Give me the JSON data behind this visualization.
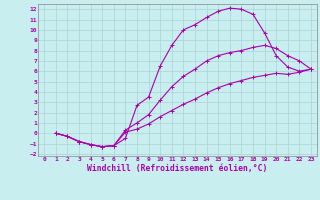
{
  "xlabel": "Windchill (Refroidissement éolien,°C)",
  "xlim": [
    -0.5,
    23.5
  ],
  "ylim": [
    -2.2,
    12.5
  ],
  "xticks": [
    0,
    1,
    2,
    3,
    4,
    5,
    6,
    7,
    8,
    9,
    10,
    11,
    12,
    13,
    14,
    15,
    16,
    17,
    18,
    19,
    20,
    21,
    22,
    23
  ],
  "yticks": [
    -2,
    -1,
    0,
    1,
    2,
    3,
    4,
    5,
    6,
    7,
    8,
    9,
    10,
    11,
    12
  ],
  "background_color": "#c8eef0",
  "grid_color": "#aad4d8",
  "line_color": "#aa00aa",
  "line1_x": [
    1,
    2,
    3,
    4,
    5,
    6,
    7,
    8,
    9,
    10,
    11,
    12,
    13,
    14,
    15,
    16,
    17,
    18,
    19,
    20,
    21,
    22,
    23
  ],
  "line1_y": [
    0,
    -0.3,
    -0.8,
    -1.1,
    -1.3,
    -1.2,
    -0.5,
    2.7,
    3.5,
    6.5,
    8.5,
    10.0,
    10.5,
    11.2,
    11.8,
    12.1,
    12.0,
    11.5,
    9.7,
    7.5,
    6.4,
    6.0,
    6.2
  ],
  "line2_x": [
    1,
    2,
    3,
    4,
    5,
    6,
    7,
    8,
    9,
    10,
    11,
    12,
    13,
    14,
    15,
    16,
    17,
    18,
    19,
    20,
    21,
    22,
    23
  ],
  "line2_y": [
    0,
    -0.3,
    -0.8,
    -1.1,
    -1.3,
    -1.2,
    0.3,
    1.0,
    1.8,
    3.2,
    4.5,
    5.5,
    6.2,
    7.0,
    7.5,
    7.8,
    8.0,
    8.3,
    8.5,
    8.2,
    7.5,
    7.0,
    6.2
  ],
  "line3_x": [
    1,
    2,
    3,
    4,
    5,
    6,
    7,
    8,
    9,
    10,
    11,
    12,
    13,
    14,
    15,
    16,
    17,
    18,
    19,
    20,
    21,
    22,
    23
  ],
  "line3_y": [
    0,
    -0.3,
    -0.8,
    -1.1,
    -1.3,
    -1.2,
    0.1,
    0.4,
    0.9,
    1.6,
    2.2,
    2.8,
    3.3,
    3.9,
    4.4,
    4.8,
    5.1,
    5.4,
    5.6,
    5.8,
    5.7,
    5.9,
    6.2
  ],
  "tick_fontsize": 4.5,
  "xlabel_fontsize": 5.8
}
